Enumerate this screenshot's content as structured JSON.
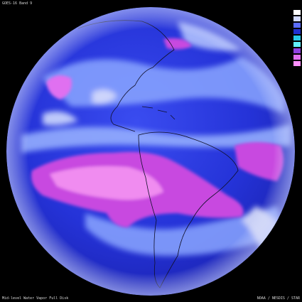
{
  "image": {
    "subject": "Full-disk satellite view of the Western Hemisphere",
    "colors": {
      "space": "#000000",
      "ocean_deep": "#1a22c8",
      "ocean_mid": "#2f3ce8",
      "cloud_light": "#9ab4ff",
      "cloud_white": "#e8eeff",
      "dry_magenta": "#c84ae0",
      "dry_pink": "#f08cf0",
      "coastline": "#101028"
    }
  },
  "captions": {
    "top": "GOES-16 Band 9",
    "bottom_left": "Mid-level Water Vapor  Full Disk",
    "bottom_right": "NOAA / NESDIS / STAR"
  },
  "legend": {
    "swatches": [
      "#ffffff",
      "#d0d8ff",
      "#5a6cff",
      "#2030d0",
      "#28c8e8",
      "#60f0ff",
      "#9040e0",
      "#e070f0",
      "#ff90ff"
    ]
  }
}
